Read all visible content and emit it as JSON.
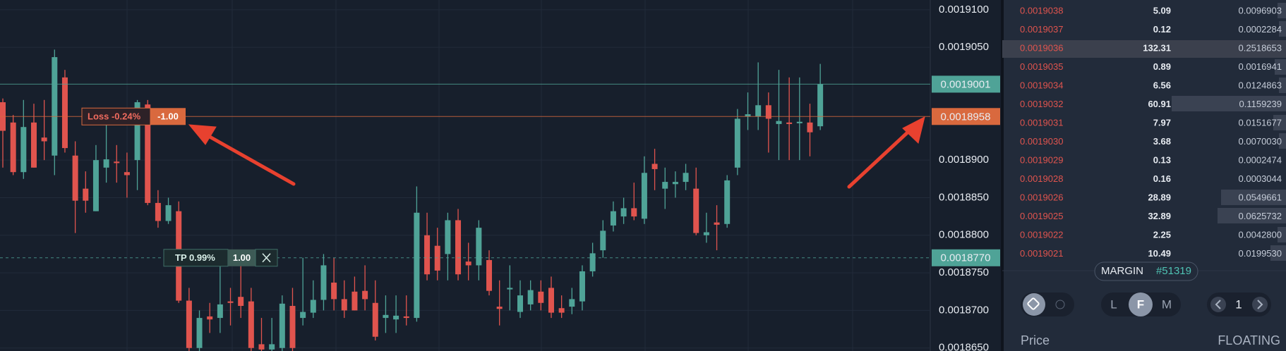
{
  "chart_data": {
    "type": "candlestick",
    "open": [
      0.0018977,
      0.001895,
      0.0018884,
      0.001895,
      0.001893,
      0.0018906,
      0.001901,
      0.0018906,
      0.0018862,
      0.0018832,
      0.001889,
      0.0018898,
      0.0018884,
      0.00189,
      0.0018974,
      0.0018843,
      0.0018819,
      0.0018832,
      0.0018713,
      0.001865,
      0.0018692,
      0.001869,
      0.0018712,
      0.0018718,
      0.0018712,
      0.0018655,
      0.0018648,
      0.001865,
      0.0018706,
      0.001869,
      0.0018697,
      0.0018714,
      0.0018737,
      0.0018715,
      0.0018725,
      0.0018726,
      0.001871,
      0.001869,
      0.0018688,
      0.0018692,
      0.001869,
      0.00188,
      0.0018786,
      0.0018775,
      0.001882,
      0.0018765,
      0.001876,
      0.0018767,
      0.0018705,
      0.0018728,
      0.0018698,
      0.0018708,
      0.0018725,
      0.001873,
      0.0018703,
      0.0018705,
      0.0018712,
      0.0018752,
      0.001878,
      0.0018813,
      0.0018825,
      0.0018836,
      0.0018822,
      0.0018895,
      0.0018862,
      0.0018868,
      0.0018871,
      0.0018862,
      0.00188,
      0.0018817,
      0.0018815,
      0.001889,
      0.0018958,
      0.0018958,
      0.0018973,
      0.0018948,
      0.001895,
      0.0018949,
      0.001895,
      0.0018945
    ],
    "high": [
      0.0018982,
      0.001896,
      0.001898,
      0.0018975,
      0.001898,
      0.0019047,
      0.001902,
      0.0018925,
      0.0018885,
      0.001892,
      0.001895,
      0.001892,
      0.001891,
      0.001898,
      0.001898,
      0.001886,
      0.001885,
      0.0018845,
      0.001873,
      0.00187,
      0.001871,
      0.001876,
      0.001873,
      0.001876,
      0.001873,
      0.001869,
      0.001869,
      0.001872,
      0.001873,
      0.001877,
      0.001874,
      0.0018775,
      0.001877,
      0.001874,
      0.0018745,
      0.001876,
      0.001874,
      0.001872,
      0.001872,
      0.001872,
      0.0018865,
      0.001883,
      0.001881,
      0.001883,
      0.0018835,
      0.001879,
      0.001882,
      0.001878,
      0.001874,
      0.001876,
      0.001874,
      0.001874,
      0.001874,
      0.0018745,
      0.001872,
      0.001873,
      0.001876,
      0.001879,
      0.001882,
      0.0018845,
      0.001885,
      0.001887,
      0.0018905,
      0.0018915,
      0.001889,
      0.0018885,
      0.0018895,
      0.001889,
      0.001883,
      0.001884,
      0.001888,
      0.0018968,
      0.001899,
      0.001903,
      0.001899,
      0.001902,
      0.001901,
      0.001901,
      0.0018975,
      0.0019028
    ],
    "low": [
      0.001889,
      0.001888,
      0.0018875,
      0.001889,
      0.00189,
      0.001888,
      0.001891,
      0.0018803,
      0.001883,
      0.0018832,
      0.001887,
      0.001887,
      0.001885,
      0.001886,
      0.001884,
      0.001881,
      0.0018815,
      0.001871,
      0.001864,
      0.001864,
      0.001867,
      0.001867,
      0.001868,
      0.001869,
      0.001864,
      0.001864,
      0.001864,
      0.001864,
      0.001864,
      0.001868,
      0.001869,
      0.00187,
      0.00187,
      0.001869,
      0.00187,
      0.00187,
      0.001866,
      0.001867,
      0.001867,
      0.001868,
      0.0018685,
      0.001874,
      0.001874,
      0.001874,
      0.001874,
      0.001874,
      0.001874,
      0.001872,
      0.001868,
      0.00187,
      0.001869,
      0.00187,
      0.00187,
      0.001869,
      0.001869,
      0.0018695,
      0.00187,
      0.0018745,
      0.001877,
      0.0018805,
      0.0018815,
      0.001882,
      0.0018815,
      0.001886,
      0.0018835,
      0.001885,
      0.001886,
      0.00188,
      0.001879,
      0.001878,
      0.001881,
      0.001888,
      0.001894,
      0.001894,
      0.001891,
      0.00189,
      0.00189,
      0.00189,
      0.0018905,
      0.001894
    ],
    "close": [
      0.0018939,
      0.0018884,
      0.0018944,
      0.001889,
      0.0018925,
      0.0019037,
      0.0018916,
      0.0018846,
      0.0018846,
      0.00189,
      0.0018901,
      0.0018896,
      0.001888,
      0.0018977,
      0.0018843,
      0.0018819,
      0.001884,
      0.0018713,
      0.001865,
      0.001869,
      0.0018688,
      0.0018708,
      0.001871,
      0.0018706,
      0.001865,
      0.0018648,
      0.0018655,
      0.0018709,
      0.001865,
      0.0018698,
      0.0018714,
      0.001876,
      0.0018715,
      0.00187,
      0.00187,
      0.0018715,
      0.0018665,
      0.0018694,
      0.0018693,
      0.001869,
      0.001883,
      0.0018748,
      0.0018753,
      0.001882,
      0.0018748,
      0.001876,
      0.001881,
      0.0018726,
      0.0018702,
      0.001873,
      0.001872,
      0.0018727,
      0.001871,
      0.0018697,
      0.0018697,
      0.0018715,
      0.0018752,
      0.0018776,
      0.0018806,
      0.0018832,
      0.0018836,
      0.0018825,
      0.0018883,
      0.0018888,
      0.0018871,
      0.0018871,
      0.0018883,
      0.0018803,
      0.0018804,
      0.0018814,
      0.0018873,
      0.0018955,
      0.0018961,
      0.0018973,
      0.0018955,
      0.0018952,
      0.0018948,
      0.0018951,
      0.0018937,
      0.0019001
    ],
    "up_color": "#4fa397",
    "down_color": "#e0544e",
    "ylim": [
      0.0018646,
      0.0019113
    ],
    "yticks": [
      {
        "value": 0.00191,
        "label": "0.0019100"
      },
      {
        "value": 0.001905,
        "label": "0.0019050"
      },
      {
        "value": 0.00189,
        "label": "0.0018900"
      },
      {
        "value": 0.001885,
        "label": "0.0018850"
      },
      {
        "value": 0.00188,
        "label": "0.0018800"
      },
      {
        "value": 0.001875,
        "label": "0.0018750"
      },
      {
        "value": 0.00187,
        "label": "0.0018700"
      },
      {
        "value": 0.001865,
        "label": "0.0018650"
      }
    ],
    "grid": true,
    "price_lines": [
      {
        "value": 0.0019001,
        "label": "0.0019001",
        "color": "#4fa397",
        "style": "solid"
      },
      {
        "value": 0.0018958,
        "label": "0.0018958",
        "color": "#d9693e",
        "style": "solid",
        "order": {
          "label": "Loss -0.24%",
          "quantity": "-1.00"
        }
      },
      {
        "value": 0.001877,
        "label": "0.0018770",
        "color": "#4fa397",
        "style": "dashed",
        "order": {
          "label": "TP 0.99%",
          "quantity": "1.00"
        }
      }
    ]
  },
  "order_book": {
    "rows": [
      [
        "0.0019038",
        "5.09",
        "0.0096903"
      ],
      [
        "0.0019037",
        "0.12",
        "0.0002284"
      ],
      [
        "0.0019036",
        "132.31",
        "0.2518653"
      ],
      [
        "0.0019035",
        "0.89",
        "0.0016941"
      ],
      [
        "0.0019034",
        "6.56",
        "0.0124863"
      ],
      [
        "0.0019032",
        "60.91",
        "0.1159239"
      ],
      [
        "0.0019031",
        "7.97",
        "0.0151677"
      ],
      [
        "0.0019030",
        "3.68",
        "0.0070030"
      ],
      [
        "0.0019029",
        "0.13",
        "0.0002474"
      ],
      [
        "0.0019028",
        "0.16",
        "0.0003044"
      ],
      [
        "0.0019026",
        "28.89",
        "0.0549661"
      ],
      [
        "0.0019025",
        "32.89",
        "0.0625732"
      ],
      [
        "0.0019022",
        "2.25",
        "0.0042800"
      ],
      [
        "0.0019021",
        "10.49",
        "0.0199530"
      ]
    ]
  },
  "controls": {
    "margin_label": "MARGIN",
    "margin_id": "#51319",
    "modes": [
      "L",
      "F",
      "M"
    ],
    "leverage": "1",
    "price_label": "Price",
    "price_mode": "FLOATING"
  }
}
